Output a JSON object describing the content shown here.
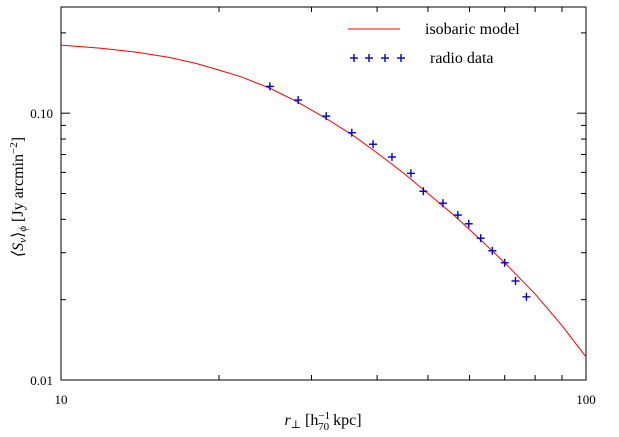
{
  "chart_data": {
    "type": "line",
    "x_scale": "log",
    "y_scale": "log",
    "xlim": [
      10,
      100
    ],
    "ylim": [
      0.01,
      0.25
    ],
    "xticks": [
      {
        "value": 10,
        "label": "10"
      },
      {
        "value": 100,
        "label": "100"
      }
    ],
    "yticks": [
      {
        "value": 0.01,
        "label": "0.01"
      },
      {
        "value": 0.1,
        "label": "0.10"
      }
    ],
    "xlabel": {
      "main": "r",
      "sub": "⊥",
      "open": " [h",
      "sup": "−1",
      "sub2": "70",
      "close": " kpc]"
    },
    "ylabel": {
      "open": "⟨S",
      "sub": "ν",
      "mid": "⟩",
      "sub2": "ϕ",
      "rest": " [Jy arcmin",
      "sup": "−2",
      "close": "]"
    },
    "legend": {
      "position": "top-right",
      "model_label": "isobaric model",
      "data_label": "radio data"
    },
    "colors": {
      "model": "#ff0000",
      "data": "#0000cc",
      "axes": "#000000"
    },
    "series": [
      {
        "kind": "line",
        "x": [
          10,
          12,
          14,
          16,
          18,
          20,
          22,
          25,
          28,
          32,
          36,
          40,
          45,
          50,
          56,
          63,
          70,
          80,
          90,
          100
        ],
        "y": [
          0.18,
          0.175,
          0.169,
          0.162,
          0.154,
          0.145,
          0.137,
          0.124,
          0.111,
          0.0955,
          0.0825,
          0.071,
          0.0595,
          0.05,
          0.0415,
          0.0335,
          0.0275,
          0.021,
          0.016,
          0.0122
        ]
      },
      {
        "kind": "scatter",
        "x": [
          25.0,
          28.3,
          32.0,
          35.8,
          39.3,
          42.7,
          46.4,
          49.0,
          53.4,
          57.0,
          59.8,
          63.0,
          66.3,
          70.0,
          73.4,
          77.0
        ],
        "y": [
          0.126,
          0.112,
          0.0975,
          0.0845,
          0.0765,
          0.0685,
          0.0595,
          0.051,
          0.046,
          0.0415,
          0.0385,
          0.034,
          0.0305,
          0.0275,
          0.0235,
          0.0205
        ]
      }
    ]
  }
}
